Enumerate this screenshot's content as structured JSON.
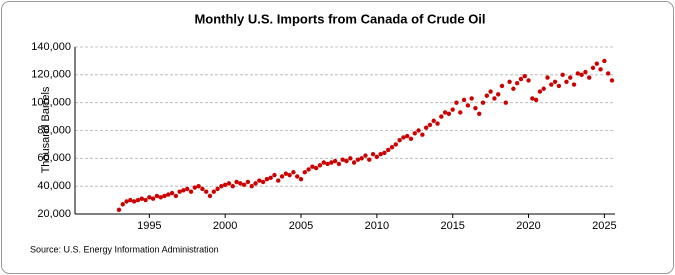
{
  "chart_data": {
    "type": "scatter",
    "title": "Monthly U.S. Imports from Canada of Crude Oil",
    "y_label": "Thousand Barrels",
    "source": "Source: U.S. Energy Information Administration",
    "color": "#cc0000",
    "grid": true,
    "xlim": [
      1990.1,
      2025.7
    ],
    "xticks": [
      1995,
      2000,
      2005,
      2010,
      2015,
      2020,
      2025
    ],
    "ylim": [
      20000,
      140000
    ],
    "yticks": [
      {
        "value": 20000,
        "label": "20,000"
      },
      {
        "value": 40000,
        "label": "40,000"
      },
      {
        "value": 60000,
        "label": "60,000"
      },
      {
        "value": 80000,
        "label": "80,000"
      },
      {
        "value": 100000,
        "label": "100,000"
      },
      {
        "value": 120000,
        "label": "120,000"
      },
      {
        "value": 140000,
        "label": "140,000"
      }
    ],
    "x": [
      1993,
      1993.25,
      1993.5,
      1993.75,
      1994,
      1994.25,
      1994.5,
      1994.75,
      1995,
      1995.25,
      1995.5,
      1995.75,
      1996,
      1996.25,
      1996.5,
      1996.75,
      1997,
      1997.25,
      1997.5,
      1997.75,
      1998,
      1998.25,
      1998.5,
      1998.75,
      1999,
      1999.25,
      1999.5,
      1999.75,
      2000,
      2000.25,
      2000.5,
      2000.75,
      2001,
      2001.25,
      2001.5,
      2001.75,
      2002,
      2002.25,
      2002.5,
      2002.75,
      2003,
      2003.25,
      2003.5,
      2003.75,
      2004,
      2004.25,
      2004.5,
      2004.75,
      2005,
      2005.25,
      2005.5,
      2005.75,
      2006,
      2006.25,
      2006.5,
      2006.75,
      2007,
      2007.25,
      2007.5,
      2007.75,
      2008,
      2008.25,
      2008.5,
      2008.75,
      2009,
      2009.25,
      2009.5,
      2009.75,
      2010,
      2010.25,
      2010.5,
      2010.75,
      2011,
      2011.25,
      2011.5,
      2011.75,
      2012,
      2012.25,
      2012.5,
      2012.75,
      2013,
      2013.25,
      2013.5,
      2013.75,
      2014,
      2014.25,
      2014.5,
      2014.75,
      2015,
      2015.25,
      2015.5,
      2015.75,
      2016,
      2016.25,
      2016.5,
      2016.75,
      2017,
      2017.25,
      2017.5,
      2017.75,
      2018,
      2018.25,
      2018.5,
      2018.75,
      2019,
      2019.25,
      2019.5,
      2019.75,
      2020,
      2020.25,
      2020.5,
      2020.75,
      2021,
      2021.25,
      2021.5,
      2021.75,
      2022,
      2022.25,
      2022.5,
      2022.75,
      2023,
      2023.25,
      2023.5,
      2023.75,
      2024,
      2024.25,
      2024.5,
      2024.75,
      2025,
      2025.25,
      2025.5
    ],
    "values": [
      23000,
      27000,
      29000,
      30000,
      29000,
      30000,
      31000,
      30000,
      32000,
      31000,
      33000,
      32000,
      33000,
      34000,
      35000,
      33000,
      36000,
      37000,
      38000,
      36000,
      39000,
      40000,
      38000,
      36000,
      33000,
      36000,
      38000,
      40000,
      41000,
      42000,
      40000,
      43000,
      42000,
      41000,
      43000,
      40000,
      42000,
      44000,
      43000,
      45000,
      46000,
      48000,
      44000,
      47000,
      49000,
      48000,
      50000,
      47000,
      45000,
      50000,
      52000,
      54000,
      53000,
      55000,
      57000,
      56000,
      57000,
      58000,
      56000,
      59000,
      58000,
      60000,
      57000,
      59000,
      60000,
      62000,
      59000,
      63000,
      61000,
      63000,
      64000,
      66000,
      68000,
      70000,
      73000,
      75000,
      76000,
      74000,
      78000,
      80000,
      77000,
      82000,
      84000,
      87000,
      85000,
      90000,
      93000,
      92000,
      95000,
      100000,
      93000,
      102000,
      98000,
      103000,
      96000,
      92000,
      100000,
      105000,
      108000,
      103000,
      106000,
      112000,
      100000,
      115000,
      110000,
      114000,
      117000,
      119000,
      116000,
      103000,
      102000,
      108000,
      110000,
      118000,
      113000,
      115000,
      112000,
      120000,
      115000,
      118000,
      113000,
      121000,
      120000,
      122000,
      118000,
      125000,
      128000,
      124000,
      130000,
      121000,
      116000
    ]
  }
}
